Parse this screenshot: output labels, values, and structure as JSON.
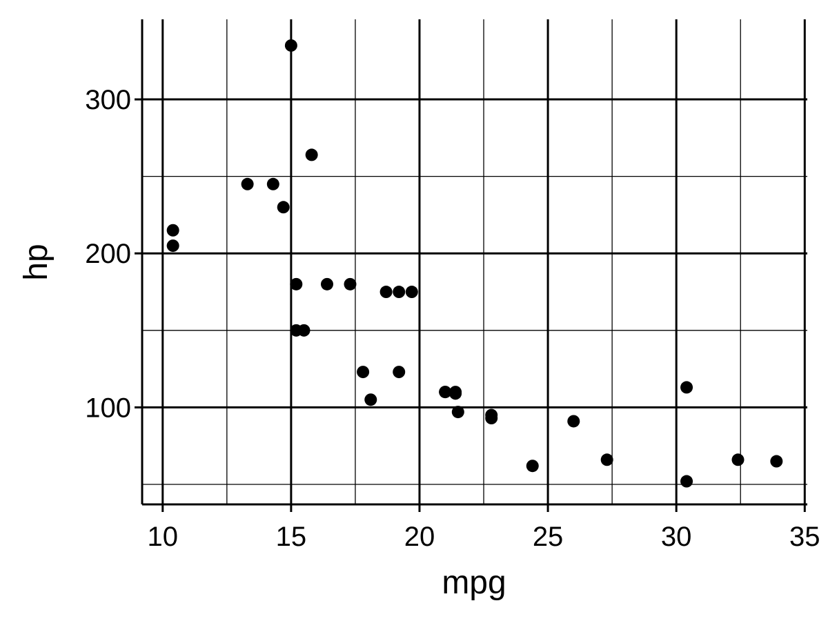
{
  "chart_data": {
    "type": "scatter",
    "title": "",
    "xlabel": "mpg",
    "ylabel": "hp",
    "xlim": [
      9.2,
      35.1
    ],
    "ylim": [
      37,
      352
    ],
    "x_ticks": [
      10,
      15,
      20,
      25,
      30,
      35
    ],
    "y_ticks": [
      100,
      200,
      300
    ],
    "x_minor_grid": [
      12.5,
      17.5,
      22.5,
      27.5,
      32.5
    ],
    "y_minor_grid": [
      50,
      150,
      250
    ],
    "grid": true,
    "legend": "none",
    "colors": {
      "points": "#000000",
      "grid": "#000000",
      "background": "#ffffff"
    },
    "points": [
      {
        "x": 21.0,
        "y": 110
      },
      {
        "x": 21.0,
        "y": 110
      },
      {
        "x": 22.8,
        "y": 93
      },
      {
        "x": 21.4,
        "y": 110
      },
      {
        "x": 18.7,
        "y": 175
      },
      {
        "x": 18.1,
        "y": 105
      },
      {
        "x": 14.3,
        "y": 245
      },
      {
        "x": 24.4,
        "y": 62
      },
      {
        "x": 22.8,
        "y": 95
      },
      {
        "x": 19.2,
        "y": 123
      },
      {
        "x": 17.8,
        "y": 123
      },
      {
        "x": 16.4,
        "y": 180
      },
      {
        "x": 17.3,
        "y": 180
      },
      {
        "x": 15.2,
        "y": 180
      },
      {
        "x": 10.4,
        "y": 205
      },
      {
        "x": 10.4,
        "y": 215
      },
      {
        "x": 14.7,
        "y": 230
      },
      {
        "x": 32.4,
        "y": 66
      },
      {
        "x": 30.4,
        "y": 52
      },
      {
        "x": 33.9,
        "y": 65
      },
      {
        "x": 21.5,
        "y": 97
      },
      {
        "x": 15.5,
        "y": 150
      },
      {
        "x": 15.2,
        "y": 150
      },
      {
        "x": 13.3,
        "y": 245
      },
      {
        "x": 19.2,
        "y": 175
      },
      {
        "x": 27.3,
        "y": 66
      },
      {
        "x": 26.0,
        "y": 91
      },
      {
        "x": 30.4,
        "y": 113
      },
      {
        "x": 15.8,
        "y": 264
      },
      {
        "x": 19.7,
        "y": 175
      },
      {
        "x": 15.0,
        "y": 335
      },
      {
        "x": 21.4,
        "y": 109
      }
    ]
  }
}
